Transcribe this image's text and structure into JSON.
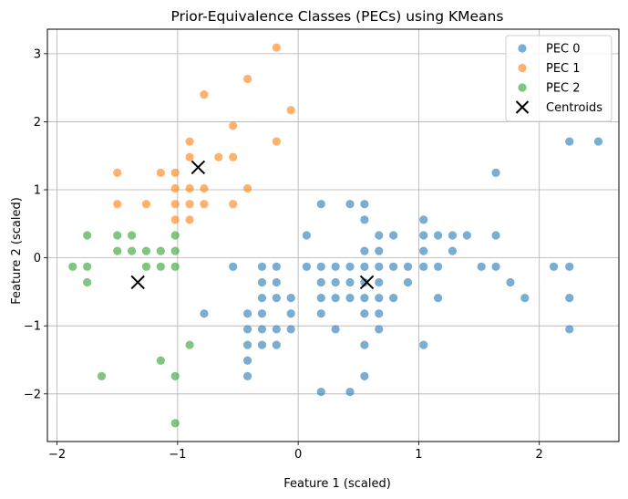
{
  "chart_data": {
    "type": "scatter",
    "title": "Prior-Equivalence Classes (PECs) using KMeans",
    "xlabel": "Feature 1 (scaled)",
    "ylabel": "Feature 2 (scaled)",
    "xlim": [
      -2.08,
      2.66
    ],
    "ylim": [
      -2.7,
      3.36
    ],
    "xticks": [
      -2,
      -1,
      0,
      1,
      2
    ],
    "yticks": [
      -2,
      -1,
      0,
      1,
      2,
      3
    ],
    "grid": true,
    "legend_position": "top-right",
    "series": [
      {
        "name": "PEC 0",
        "color": "#1f77b4",
        "marker": "circle",
        "points": [
          [
            -0.78,
            -0.82
          ],
          [
            -0.54,
            -0.13
          ],
          [
            -0.42,
            -1.05
          ],
          [
            -0.42,
            -1.28
          ],
          [
            -0.42,
            -1.51
          ],
          [
            -0.42,
            -1.74
          ],
          [
            -0.42,
            -0.82
          ],
          [
            -0.3,
            -0.13
          ],
          [
            -0.3,
            -0.36
          ],
          [
            -0.3,
            -0.59
          ],
          [
            -0.3,
            -0.82
          ],
          [
            -0.3,
            -1.05
          ],
          [
            -0.3,
            -1.28
          ],
          [
            -0.18,
            -0.13
          ],
          [
            -0.18,
            -0.36
          ],
          [
            -0.18,
            -0.59
          ],
          [
            -0.18,
            -1.05
          ],
          [
            -0.18,
            -1.28
          ],
          [
            -0.06,
            -0.59
          ],
          [
            -0.06,
            -0.82
          ],
          [
            -0.06,
            -1.05
          ],
          [
            0.07,
            0.33
          ],
          [
            0.07,
            -0.13
          ],
          [
            0.19,
            0.79
          ],
          [
            0.19,
            -0.13
          ],
          [
            0.19,
            -0.36
          ],
          [
            0.19,
            -0.59
          ],
          [
            0.19,
            -0.82
          ],
          [
            0.19,
            -1.97
          ],
          [
            0.31,
            -0.13
          ],
          [
            0.31,
            -0.36
          ],
          [
            0.31,
            -0.59
          ],
          [
            0.31,
            -1.05
          ],
          [
            0.43,
            0.79
          ],
          [
            0.43,
            -0.13
          ],
          [
            0.43,
            -0.36
          ],
          [
            0.43,
            -0.59
          ],
          [
            0.43,
            -1.97
          ],
          [
            0.55,
            0.79
          ],
          [
            0.55,
            0.56
          ],
          [
            0.55,
            0.1
          ],
          [
            0.55,
            -0.13
          ],
          [
            0.55,
            -0.36
          ],
          [
            0.55,
            -0.59
          ],
          [
            0.55,
            -0.82
          ],
          [
            0.55,
            -1.28
          ],
          [
            0.55,
            -1.74
          ],
          [
            0.67,
            0.33
          ],
          [
            0.67,
            0.1
          ],
          [
            0.67,
            -0.13
          ],
          [
            0.67,
            -0.36
          ],
          [
            0.67,
            -0.59
          ],
          [
            0.67,
            -0.82
          ],
          [
            0.67,
            -1.05
          ],
          [
            0.79,
            0.33
          ],
          [
            0.79,
            -0.13
          ],
          [
            0.79,
            -0.59
          ],
          [
            0.91,
            -0.13
          ],
          [
            0.91,
            -0.36
          ],
          [
            1.04,
            0.56
          ],
          [
            1.04,
            0.33
          ],
          [
            1.04,
            0.1
          ],
          [
            1.04,
            -0.13
          ],
          [
            1.04,
            -1.28
          ],
          [
            1.16,
            0.33
          ],
          [
            1.16,
            -0.13
          ],
          [
            1.16,
            -0.59
          ],
          [
            1.28,
            0.33
          ],
          [
            1.28,
            0.1
          ],
          [
            1.4,
            0.33
          ],
          [
            1.52,
            -0.13
          ],
          [
            1.64,
            1.25
          ],
          [
            1.64,
            0.33
          ],
          [
            1.64,
            -0.13
          ],
          [
            1.76,
            -0.36
          ],
          [
            1.88,
            -0.59
          ],
          [
            2.12,
            -0.13
          ],
          [
            2.25,
            1.71
          ],
          [
            2.25,
            -0.13
          ],
          [
            2.25,
            -0.59
          ],
          [
            2.25,
            -1.05
          ],
          [
            2.49,
            1.71
          ]
        ]
      },
      {
        "name": "PEC 1",
        "color": "#ff7f0e",
        "marker": "circle",
        "points": [
          [
            -1.5,
            1.25
          ],
          [
            -1.5,
            0.79
          ],
          [
            -1.26,
            0.79
          ],
          [
            -1.14,
            1.25
          ],
          [
            -1.02,
            1.25
          ],
          [
            -1.02,
            1.02
          ],
          [
            -1.02,
            0.79
          ],
          [
            -1.02,
            0.56
          ],
          [
            -0.9,
            1.71
          ],
          [
            -0.9,
            1.48
          ],
          [
            -0.9,
            1.02
          ],
          [
            -0.9,
            0.79
          ],
          [
            -0.9,
            0.56
          ],
          [
            -0.78,
            2.4
          ],
          [
            -0.78,
            1.02
          ],
          [
            -0.78,
            0.79
          ],
          [
            -0.66,
            1.48
          ],
          [
            -0.54,
            1.94
          ],
          [
            -0.54,
            1.48
          ],
          [
            -0.54,
            0.79
          ],
          [
            -0.42,
            2.63
          ],
          [
            -0.42,
            1.02
          ],
          [
            -0.18,
            3.09
          ],
          [
            -0.18,
            1.71
          ],
          [
            -0.06,
            2.17
          ]
        ]
      },
      {
        "name": "PEC 2",
        "color": "#2ca02c",
        "marker": "circle",
        "points": [
          [
            -1.87,
            -0.13
          ],
          [
            -1.75,
            0.33
          ],
          [
            -1.75,
            -0.13
          ],
          [
            -1.75,
            -0.36
          ],
          [
            -1.63,
            -1.74
          ],
          [
            -1.5,
            0.33
          ],
          [
            -1.5,
            0.1
          ],
          [
            -1.38,
            0.33
          ],
          [
            -1.38,
            0.1
          ],
          [
            -1.26,
            0.1
          ],
          [
            -1.26,
            -0.13
          ],
          [
            -1.14,
            0.1
          ],
          [
            -1.14,
            -0.13
          ],
          [
            -1.14,
            -1.51
          ],
          [
            -1.02,
            0.33
          ],
          [
            -1.02,
            0.1
          ],
          [
            -1.02,
            -0.13
          ],
          [
            -1.02,
            -1.74
          ],
          [
            -1.02,
            -2.43
          ],
          [
            -0.9,
            -1.28
          ]
        ]
      },
      {
        "name": "Centroids",
        "color": "#000000",
        "marker": "x",
        "points": [
          [
            0.57,
            -0.36
          ],
          [
            -0.83,
            1.33
          ],
          [
            -1.33,
            -0.36
          ]
        ]
      }
    ]
  }
}
